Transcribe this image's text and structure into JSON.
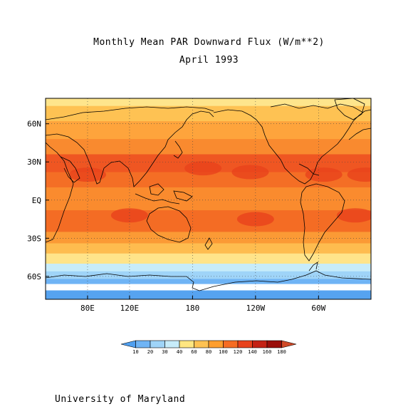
{
  "title": "Monthly Mean PAR Downward Flux (W/m**2)",
  "subtitle": "April 1993",
  "credit": "University of Maryland",
  "map": {
    "projection": "cylindrical equidistant",
    "lon_range": [
      40,
      350
    ],
    "lat_range": [
      -78,
      80
    ],
    "lon_ticks": [
      "80E",
      "120E",
      "180",
      "120W",
      "60W"
    ],
    "lat_ticks": [
      "60N",
      "30N",
      "EQ",
      "30S",
      "60S"
    ],
    "gridlines": "dotted"
  },
  "colorbar": {
    "labels": [
      "10",
      "20",
      "30",
      "40",
      "60",
      "80",
      "100",
      "120",
      "140",
      "160",
      "180"
    ],
    "colors": [
      "#4f9ff0",
      "#6fb4f5",
      "#9fd4f8",
      "#c7ecfa",
      "#ffe681",
      "#fec253",
      "#fe9e2e",
      "#f66c23",
      "#e8421c",
      "#c42215",
      "#9a0e0a",
      "#d04a28"
    ]
  },
  "bands": [
    {
      "lat_top": 80,
      "lat_bottom": 74,
      "color": "#fee58c"
    },
    {
      "lat_top": 74,
      "lat_bottom": 62,
      "color": "#fec253"
    },
    {
      "lat_top": 62,
      "lat_bottom": 48,
      "color": "#fea43c"
    },
    {
      "lat_top": 48,
      "lat_bottom": 36,
      "color": "#f98a2f"
    },
    {
      "lat_top": 36,
      "lat_bottom": 22,
      "color": "#ef5622"
    },
    {
      "lat_top": 22,
      "lat_bottom": 10,
      "color": "#f46e25"
    },
    {
      "lat_top": 10,
      "lat_bottom": -8,
      "color": "#fa8b2e"
    },
    {
      "lat_top": -8,
      "lat_bottom": -25,
      "color": "#f46c24"
    },
    {
      "lat_top": -25,
      "lat_bottom": -34,
      "color": "#fb9a35"
    },
    {
      "lat_top": -34,
      "lat_bottom": -42,
      "color": "#febc4f"
    },
    {
      "lat_top": -42,
      "lat_bottom": -50,
      "color": "#ffe48a"
    },
    {
      "lat_top": -50,
      "lat_bottom": -56,
      "color": "#c7ecfa"
    },
    {
      "lat_top": -56,
      "lat_bottom": -62,
      "color": "#9fd4f8"
    },
    {
      "lat_top": -62,
      "lat_bottom": -66,
      "color": "#6fb4f5"
    },
    {
      "lat_top": -66,
      "lat_bottom": -71,
      "color": "#ffffff"
    },
    {
      "lat_top": -71,
      "lat_bottom": -78,
      "color": "#56a3f0"
    }
  ],
  "hotspots": [
    {
      "lon": 80,
      "lat": 20,
      "color": "#e8421c"
    },
    {
      "lon": 190,
      "lat": 25,
      "color": "#e8421c"
    },
    {
      "lon": 235,
      "lat": 22,
      "color": "#e8421c"
    },
    {
      "lon": 305,
      "lat": 20,
      "color": "#e8421c"
    },
    {
      "lon": 345,
      "lat": 20,
      "color": "#e8421c"
    },
    {
      "lon": 120,
      "lat": -12,
      "color": "#e8421c"
    },
    {
      "lon": 240,
      "lat": -15,
      "color": "#e8421c"
    },
    {
      "lon": 335,
      "lat": -12,
      "color": "#e8421c"
    }
  ]
}
